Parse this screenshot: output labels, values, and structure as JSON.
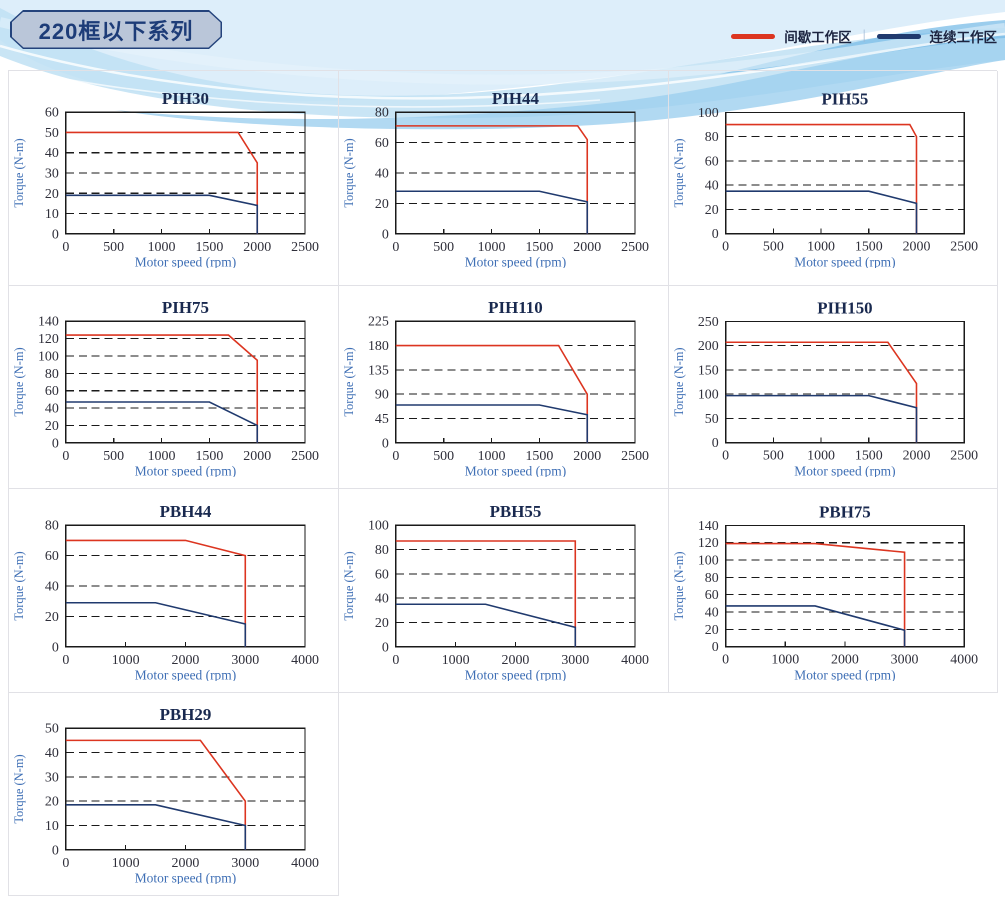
{
  "header": {
    "title": "220框以下系列",
    "legend": {
      "separator": "|",
      "items": [
        {
          "label": "间歇工作区",
          "key": "intermittent",
          "color": "#dc3520"
        },
        {
          "label": "连续工作区",
          "key": "continuous",
          "color": "#203a6e"
        }
      ]
    }
  },
  "colors": {
    "intermittent": "#dc3520",
    "continuous": "#203a6e",
    "axis": "#1a1a1a",
    "tick_label": "#2f2f3a",
    "axis_label": "#3f6fb5",
    "chart_title": "#19294f",
    "cell_border": "#e1e1e6"
  },
  "layout_rows": [
    [
      "PIH30",
      "PIH44",
      "PIH55"
    ],
    [
      "PIH75",
      "PIH110",
      "PIH150"
    ],
    [
      "PBH44",
      "PBH55",
      "PBH75"
    ],
    [
      "PBH29",
      null,
      null
    ]
  ],
  "chart_data": [
    {
      "type": "line",
      "title": "PIH30",
      "xlabel": "Motor speed (rpm)",
      "ylabel": "Torque (N-m)",
      "xlim": [
        0,
        2500
      ],
      "xstep": 500,
      "xticks": [
        0,
        500,
        1000,
        1500,
        2000,
        2500
      ],
      "ylim": [
        0,
        60
      ],
      "ystep": 10,
      "yticks": [
        0,
        10,
        20,
        30,
        40,
        50,
        60
      ],
      "grid": "dashed-horizontal",
      "legend_position": "none",
      "series": [
        {
          "name": "间歇工作区",
          "key": "intermittent",
          "points": [
            [
              0,
              50
            ],
            [
              1800,
              50
            ],
            [
              2000,
              35
            ],
            [
              2000,
              0
            ]
          ]
        },
        {
          "name": "连续工作区",
          "key": "continuous",
          "points": [
            [
              0,
              19
            ],
            [
              1500,
              19
            ],
            [
              2000,
              14
            ],
            [
              2000,
              0
            ]
          ]
        }
      ]
    },
    {
      "type": "line",
      "title": "PIH44",
      "xlabel": "Motor speed (rpm)",
      "ylabel": "Torque (N-m)",
      "xlim": [
        0,
        2500
      ],
      "xstep": 500,
      "xticks": [
        0,
        500,
        1000,
        1500,
        2000,
        2500
      ],
      "ylim": [
        0,
        80
      ],
      "ystep": 20,
      "yticks": [
        0,
        20,
        40,
        60,
        80
      ],
      "grid": "dashed-horizontal",
      "legend_position": "none",
      "series": [
        {
          "name": "间歇工作区",
          "key": "intermittent",
          "points": [
            [
              0,
              71
            ],
            [
              1900,
              71
            ],
            [
              2000,
              62
            ],
            [
              2000,
              0
            ]
          ]
        },
        {
          "name": "连续工作区",
          "key": "continuous",
          "points": [
            [
              0,
              28
            ],
            [
              1500,
              28
            ],
            [
              2000,
              21
            ],
            [
              2000,
              0
            ]
          ]
        }
      ]
    },
    {
      "type": "line",
      "title": "PIH55",
      "xlabel": "Motor speed (rpm)",
      "ylabel": "Torque (N-m)",
      "xlim": [
        0,
        2500
      ],
      "xstep": 500,
      "xticks": [
        0,
        500,
        1000,
        1500,
        2000,
        2500
      ],
      "ylim": [
        0,
        100
      ],
      "ystep": 20,
      "yticks": [
        0,
        20,
        40,
        60,
        80,
        100
      ],
      "grid": "dashed-horizontal",
      "legend_position": "none",
      "series": [
        {
          "name": "间歇工作区",
          "key": "intermittent",
          "points": [
            [
              0,
              90
            ],
            [
              1930,
              90
            ],
            [
              2000,
              80
            ],
            [
              2000,
              0
            ]
          ]
        },
        {
          "name": "连续工作区",
          "key": "continuous",
          "points": [
            [
              0,
              35
            ],
            [
              1500,
              35
            ],
            [
              2000,
              25
            ],
            [
              2000,
              0
            ]
          ]
        }
      ]
    },
    {
      "type": "line",
      "title": "PIH75",
      "xlabel": "Motor speed (rpm)",
      "ylabel": "Torque (N-m)",
      "xlim": [
        0,
        2500
      ],
      "xstep": 500,
      "xticks": [
        0,
        500,
        1000,
        1500,
        2000,
        2500
      ],
      "ylim": [
        0,
        140
      ],
      "ystep": 20,
      "yticks": [
        0,
        20,
        40,
        60,
        80,
        100,
        120,
        140
      ],
      "grid": "dashed-horizontal",
      "legend_position": "none",
      "series": [
        {
          "name": "间歇工作区",
          "key": "intermittent",
          "points": [
            [
              0,
              124
            ],
            [
              1700,
              124
            ],
            [
              2000,
              95
            ],
            [
              2000,
              0
            ]
          ]
        },
        {
          "name": "连续工作区",
          "key": "continuous",
          "points": [
            [
              0,
              47
            ],
            [
              1500,
              47
            ],
            [
              2000,
              20
            ],
            [
              2000,
              0
            ]
          ]
        }
      ]
    },
    {
      "type": "line",
      "title": "PIH110",
      "xlabel": "Motor speed (rpm)",
      "ylabel": "Torque (N-m)",
      "xlim": [
        0,
        2500
      ],
      "xstep": 500,
      "xticks": [
        0,
        500,
        1000,
        1500,
        2000,
        2500
      ],
      "ylim": [
        0,
        225
      ],
      "ystep": 45,
      "yticks": [
        0,
        45,
        90,
        135,
        180,
        225
      ],
      "grid": "dashed-horizontal",
      "legend_position": "none",
      "series": [
        {
          "name": "间歇工作区",
          "key": "intermittent",
          "points": [
            [
              0,
              180
            ],
            [
              1700,
              180
            ],
            [
              2000,
              90
            ],
            [
              2000,
              0
            ]
          ]
        },
        {
          "name": "连续工作区",
          "key": "continuous",
          "points": [
            [
              0,
              70
            ],
            [
              1500,
              70
            ],
            [
              2000,
              52
            ],
            [
              2000,
              0
            ]
          ]
        }
      ]
    },
    {
      "type": "line",
      "title": "PIH150",
      "xlabel": "Motor speed (rpm)",
      "ylabel": "Torque (N-m)",
      "xlim": [
        0,
        2500
      ],
      "xstep": 500,
      "xticks": [
        0,
        500,
        1000,
        1500,
        2000,
        2500
      ],
      "ylim": [
        0,
        250
      ],
      "ystep": 50,
      "yticks": [
        0,
        50,
        100,
        150,
        200,
        250
      ],
      "grid": "dashed-horizontal",
      "legend_position": "none",
      "series": [
        {
          "name": "间歇工作区",
          "key": "intermittent",
          "points": [
            [
              0,
              207
            ],
            [
              1700,
              207
            ],
            [
              2000,
              122
            ],
            [
              2000,
              0
            ]
          ]
        },
        {
          "name": "连续工作区",
          "key": "continuous",
          "points": [
            [
              0,
              97
            ],
            [
              1500,
              97
            ],
            [
              2000,
              72
            ],
            [
              2000,
              0
            ]
          ]
        }
      ]
    },
    {
      "type": "line",
      "title": "PBH44",
      "xlabel": "Motor speed (rpm)",
      "ylabel": "Torque (N-m)",
      "xlim": [
        0,
        4000
      ],
      "xstep": 1000,
      "xticks": [
        0,
        1000,
        2000,
        3000,
        4000
      ],
      "ylim": [
        0,
        80
      ],
      "ystep": 20,
      "yticks": [
        0,
        20,
        40,
        60,
        80
      ],
      "grid": "dashed-horizontal",
      "legend_position": "none",
      "series": [
        {
          "name": "间歇工作区",
          "key": "intermittent",
          "points": [
            [
              0,
              70
            ],
            [
              2000,
              70
            ],
            [
              3000,
              60
            ],
            [
              3000,
              0
            ]
          ]
        },
        {
          "name": "连续工作区",
          "key": "continuous",
          "points": [
            [
              0,
              29
            ],
            [
              1500,
              29
            ],
            [
              3000,
              15
            ],
            [
              3000,
              0
            ]
          ]
        }
      ]
    },
    {
      "type": "line",
      "title": "PBH55",
      "xlabel": "Motor speed (rpm)",
      "ylabel": "Torque (N-m)",
      "xlim": [
        0,
        4000
      ],
      "xstep": 1000,
      "xticks": [
        0,
        1000,
        2000,
        3000,
        4000
      ],
      "ylim": [
        0,
        100
      ],
      "ystep": 20,
      "yticks": [
        0,
        20,
        40,
        60,
        80,
        100
      ],
      "grid": "dashed-horizontal",
      "legend_position": "none",
      "series": [
        {
          "name": "间歇工作区",
          "key": "intermittent",
          "points": [
            [
              0,
              87
            ],
            [
              3000,
              87
            ],
            [
              3000,
              0
            ]
          ]
        },
        {
          "name": "连续工作区",
          "key": "continuous",
          "points": [
            [
              0,
              35
            ],
            [
              1500,
              35
            ],
            [
              3000,
              16
            ],
            [
              3000,
              0
            ]
          ]
        }
      ]
    },
    {
      "type": "line",
      "title": "PBH75",
      "xlabel": "Motor speed (rpm)",
      "ylabel": "Torque (N-m)",
      "xlim": [
        0,
        4000
      ],
      "xstep": 1000,
      "xticks": [
        0,
        1000,
        2000,
        3000,
        4000
      ],
      "ylim": [
        0,
        140
      ],
      "ystep": 20,
      "yticks": [
        0,
        20,
        40,
        60,
        80,
        100,
        120,
        140
      ],
      "grid": "dashed-horizontal",
      "legend_position": "none",
      "series": [
        {
          "name": "间歇工作区",
          "key": "intermittent",
          "points": [
            [
              0,
              119
            ],
            [
              1500,
              119
            ],
            [
              3000,
              109
            ],
            [
              3000,
              0
            ]
          ]
        },
        {
          "name": "连续工作区",
          "key": "continuous",
          "points": [
            [
              0,
              47
            ],
            [
              1500,
              47
            ],
            [
              3000,
              19
            ],
            [
              3000,
              0
            ]
          ]
        }
      ]
    },
    {
      "type": "line",
      "title": "PBH29",
      "xlabel": "Motor speed (rpm)",
      "ylabel": "Torque (N-m)",
      "xlim": [
        0,
        4000
      ],
      "xstep": 1000,
      "xticks": [
        0,
        1000,
        2000,
        3000,
        4000
      ],
      "ylim": [
        0,
        50
      ],
      "ystep": 10,
      "yticks": [
        0,
        10,
        20,
        30,
        40,
        50
      ],
      "grid": "dashed-horizontal",
      "legend_position": "none",
      "series": [
        {
          "name": "间歇工作区",
          "key": "intermittent",
          "points": [
            [
              0,
              45
            ],
            [
              2250,
              45
            ],
            [
              3000,
              20
            ],
            [
              3000,
              0
            ]
          ]
        },
        {
          "name": "连续工作区",
          "key": "continuous",
          "points": [
            [
              0,
              18.5
            ],
            [
              1500,
              18.5
            ],
            [
              3000,
              10
            ],
            [
              3000,
              0
            ]
          ]
        }
      ]
    }
  ]
}
